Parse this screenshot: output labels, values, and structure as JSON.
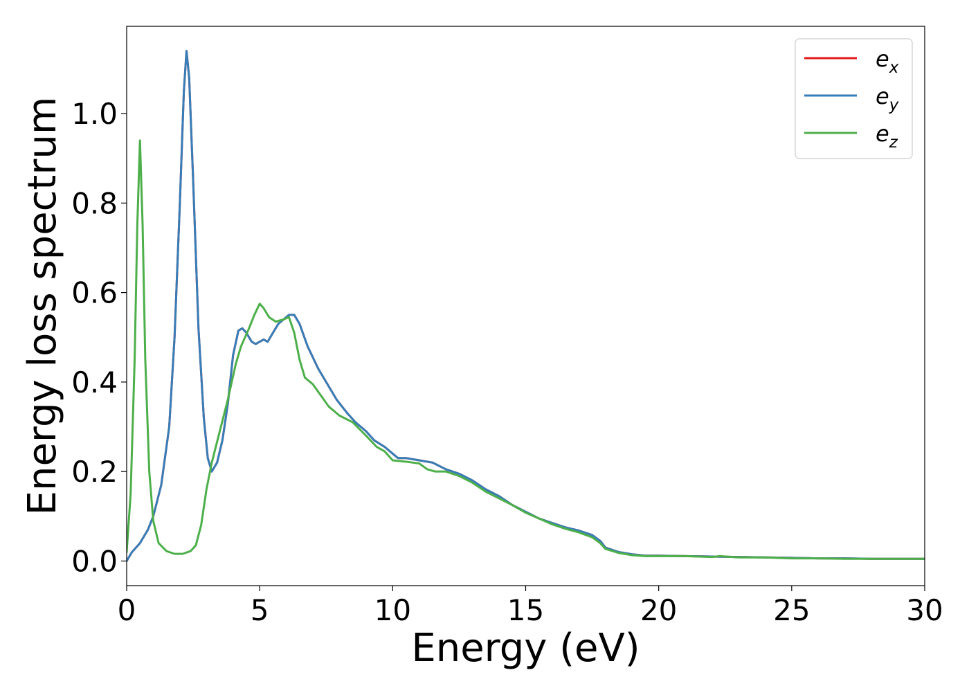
{
  "chart_data": {
    "type": "line",
    "title": "",
    "xlabel": "Energy (eV)",
    "ylabel": "Energy loss spectrum",
    "xlim": [
      0,
      30
    ],
    "ylim": [
      -0.055,
      1.195
    ],
    "xticks": [
      0,
      5,
      10,
      15,
      20,
      25,
      30
    ],
    "xtick_labels": [
      "0",
      "5",
      "10",
      "15",
      "20",
      "25",
      "30"
    ],
    "yticks": [
      0.0,
      0.2,
      0.4,
      0.6,
      0.8,
      1.0
    ],
    "ytick_labels": [
      "0.0",
      "0.2",
      "0.4",
      "0.6",
      "0.8",
      "1.0"
    ],
    "grid": false,
    "legend_position": "top-right",
    "series": [
      {
        "name": "e_x",
        "label_base": "e",
        "label_sub": "x",
        "color": "#e41a1c",
        "points": [
          [
            0,
            0.0
          ],
          [
            0.2,
            0.02
          ],
          [
            0.5,
            0.04
          ],
          [
            0.8,
            0.07
          ],
          [
            1.0,
            0.1
          ],
          [
            1.3,
            0.17
          ],
          [
            1.6,
            0.3
          ],
          [
            1.8,
            0.5
          ],
          [
            2.0,
            0.8
          ],
          [
            2.15,
            1.05
          ],
          [
            2.25,
            1.14
          ],
          [
            2.35,
            1.08
          ],
          [
            2.5,
            0.85
          ],
          [
            2.7,
            0.52
          ],
          [
            2.9,
            0.32
          ],
          [
            3.05,
            0.23
          ],
          [
            3.2,
            0.2
          ],
          [
            3.4,
            0.22
          ],
          [
            3.6,
            0.27
          ],
          [
            3.8,
            0.35
          ],
          [
            4.0,
            0.46
          ],
          [
            4.2,
            0.515
          ],
          [
            4.35,
            0.52
          ],
          [
            4.5,
            0.51
          ],
          [
            4.7,
            0.49
          ],
          [
            4.85,
            0.485
          ],
          [
            5.0,
            0.49
          ],
          [
            5.15,
            0.495
          ],
          [
            5.3,
            0.49
          ],
          [
            5.5,
            0.51
          ],
          [
            5.7,
            0.53
          ],
          [
            5.9,
            0.54
          ],
          [
            6.1,
            0.55
          ],
          [
            6.3,
            0.55
          ],
          [
            6.5,
            0.53
          ],
          [
            6.8,
            0.48
          ],
          [
            7.2,
            0.43
          ],
          [
            7.6,
            0.39
          ],
          [
            7.9,
            0.36
          ],
          [
            8.3,
            0.33
          ],
          [
            8.6,
            0.31
          ],
          [
            9.0,
            0.29
          ],
          [
            9.3,
            0.27
          ],
          [
            9.7,
            0.255
          ],
          [
            10.0,
            0.24
          ],
          [
            10.2,
            0.23
          ],
          [
            10.5,
            0.23
          ],
          [
            11.0,
            0.225
          ],
          [
            11.5,
            0.22
          ],
          [
            12.0,
            0.205
          ],
          [
            12.5,
            0.195
          ],
          [
            13.0,
            0.18
          ],
          [
            13.5,
            0.16
          ],
          [
            14.0,
            0.145
          ],
          [
            14.5,
            0.125
          ],
          [
            15.0,
            0.11
          ],
          [
            15.5,
            0.095
          ],
          [
            16.0,
            0.085
          ],
          [
            16.5,
            0.075
          ],
          [
            17.0,
            0.068
          ],
          [
            17.5,
            0.058
          ],
          [
            17.8,
            0.045
          ],
          [
            18.0,
            0.03
          ],
          [
            18.5,
            0.02
          ],
          [
            19.0,
            0.015
          ],
          [
            19.5,
            0.012
          ],
          [
            20.0,
            0.012
          ],
          [
            21.0,
            0.011
          ],
          [
            22.0,
            0.01
          ],
          [
            23.0,
            0.009
          ],
          [
            24.0,
            0.008
          ],
          [
            25.0,
            0.007
          ],
          [
            26.0,
            0.006
          ],
          [
            27.0,
            0.006
          ],
          [
            28.0,
            0.005
          ],
          [
            29.0,
            0.005
          ],
          [
            30.0,
            0.005
          ]
        ]
      },
      {
        "name": "e_y",
        "label_base": "e",
        "label_sub": "y",
        "color": "#377eb8",
        "points": [
          [
            0,
            0.0
          ],
          [
            0.2,
            0.02
          ],
          [
            0.5,
            0.04
          ],
          [
            0.8,
            0.07
          ],
          [
            1.0,
            0.1
          ],
          [
            1.3,
            0.17
          ],
          [
            1.6,
            0.3
          ],
          [
            1.8,
            0.5
          ],
          [
            2.0,
            0.8
          ],
          [
            2.15,
            1.05
          ],
          [
            2.25,
            1.14
          ],
          [
            2.35,
            1.08
          ],
          [
            2.5,
            0.85
          ],
          [
            2.7,
            0.52
          ],
          [
            2.9,
            0.32
          ],
          [
            3.05,
            0.23
          ],
          [
            3.2,
            0.2
          ],
          [
            3.4,
            0.22
          ],
          [
            3.6,
            0.27
          ],
          [
            3.8,
            0.35
          ],
          [
            4.0,
            0.46
          ],
          [
            4.2,
            0.515
          ],
          [
            4.35,
            0.52
          ],
          [
            4.5,
            0.51
          ],
          [
            4.7,
            0.49
          ],
          [
            4.85,
            0.485
          ],
          [
            5.0,
            0.49
          ],
          [
            5.15,
            0.495
          ],
          [
            5.3,
            0.49
          ],
          [
            5.5,
            0.51
          ],
          [
            5.7,
            0.53
          ],
          [
            5.9,
            0.54
          ],
          [
            6.1,
            0.55
          ],
          [
            6.3,
            0.55
          ],
          [
            6.5,
            0.53
          ],
          [
            6.8,
            0.48
          ],
          [
            7.2,
            0.43
          ],
          [
            7.6,
            0.39
          ],
          [
            7.9,
            0.36
          ],
          [
            8.3,
            0.33
          ],
          [
            8.6,
            0.31
          ],
          [
            9.0,
            0.29
          ],
          [
            9.3,
            0.27
          ],
          [
            9.7,
            0.255
          ],
          [
            10.0,
            0.24
          ],
          [
            10.2,
            0.23
          ],
          [
            10.5,
            0.23
          ],
          [
            11.0,
            0.225
          ],
          [
            11.5,
            0.22
          ],
          [
            12.0,
            0.205
          ],
          [
            12.5,
            0.195
          ],
          [
            13.0,
            0.18
          ],
          [
            13.5,
            0.16
          ],
          [
            14.0,
            0.145
          ],
          [
            14.5,
            0.125
          ],
          [
            15.0,
            0.11
          ],
          [
            15.5,
            0.095
          ],
          [
            16.0,
            0.085
          ],
          [
            16.5,
            0.075
          ],
          [
            17.0,
            0.068
          ],
          [
            17.5,
            0.058
          ],
          [
            17.8,
            0.045
          ],
          [
            18.0,
            0.03
          ],
          [
            18.5,
            0.02
          ],
          [
            19.0,
            0.015
          ],
          [
            19.5,
            0.012
          ],
          [
            20.0,
            0.012
          ],
          [
            21.0,
            0.011
          ],
          [
            22.0,
            0.01
          ],
          [
            23.0,
            0.009
          ],
          [
            24.0,
            0.008
          ],
          [
            25.0,
            0.007
          ],
          [
            26.0,
            0.006
          ],
          [
            27.0,
            0.006
          ],
          [
            28.0,
            0.005
          ],
          [
            29.0,
            0.005
          ],
          [
            30.0,
            0.005
          ]
        ]
      },
      {
        "name": "e_z",
        "label_base": "e",
        "label_sub": "z",
        "color": "#4daf4a",
        "points": [
          [
            0,
            0.02
          ],
          [
            0.15,
            0.15
          ],
          [
            0.3,
            0.45
          ],
          [
            0.4,
            0.75
          ],
          [
            0.5,
            0.94
          ],
          [
            0.6,
            0.75
          ],
          [
            0.7,
            0.45
          ],
          [
            0.85,
            0.2
          ],
          [
            1.0,
            0.09
          ],
          [
            1.2,
            0.04
          ],
          [
            1.5,
            0.022
          ],
          [
            1.8,
            0.016
          ],
          [
            2.1,
            0.016
          ],
          [
            2.4,
            0.022
          ],
          [
            2.6,
            0.035
          ],
          [
            2.8,
            0.08
          ],
          [
            3.0,
            0.16
          ],
          [
            3.2,
            0.22
          ],
          [
            3.5,
            0.29
          ],
          [
            3.8,
            0.36
          ],
          [
            4.1,
            0.44
          ],
          [
            4.3,
            0.48
          ],
          [
            4.6,
            0.52
          ],
          [
            4.8,
            0.55
          ],
          [
            5.0,
            0.575
          ],
          [
            5.15,
            0.565
          ],
          [
            5.35,
            0.545
          ],
          [
            5.6,
            0.535
          ],
          [
            5.9,
            0.54
          ],
          [
            6.1,
            0.545
          ],
          [
            6.3,
            0.51
          ],
          [
            6.5,
            0.45
          ],
          [
            6.7,
            0.41
          ],
          [
            7.0,
            0.395
          ],
          [
            7.3,
            0.37
          ],
          [
            7.6,
            0.345
          ],
          [
            8.0,
            0.325
          ],
          [
            8.5,
            0.31
          ],
          [
            9.0,
            0.28
          ],
          [
            9.4,
            0.255
          ],
          [
            9.7,
            0.245
          ],
          [
            10.0,
            0.225
          ],
          [
            10.5,
            0.222
          ],
          [
            11.0,
            0.218
          ],
          [
            11.3,
            0.205
          ],
          [
            11.6,
            0.2
          ],
          [
            12.0,
            0.2
          ],
          [
            12.5,
            0.19
          ],
          [
            13.0,
            0.175
          ],
          [
            13.5,
            0.155
          ],
          [
            14.0,
            0.14
          ],
          [
            14.5,
            0.125
          ],
          [
            15.0,
            0.108
          ],
          [
            15.5,
            0.095
          ],
          [
            16.0,
            0.082
          ],
          [
            16.5,
            0.072
          ],
          [
            17.0,
            0.064
          ],
          [
            17.5,
            0.053
          ],
          [
            17.8,
            0.04
          ],
          [
            18.0,
            0.027
          ],
          [
            18.5,
            0.018
          ],
          [
            19.0,
            0.013
          ],
          [
            19.5,
            0.011
          ],
          [
            20.0,
            0.011
          ],
          [
            21.0,
            0.011
          ],
          [
            22.0,
            0.009
          ],
          [
            22.3,
            0.011
          ],
          [
            23.0,
            0.008
          ],
          [
            24.0,
            0.008
          ],
          [
            25.0,
            0.006
          ],
          [
            26.0,
            0.006
          ],
          [
            27.0,
            0.005
          ],
          [
            28.0,
            0.005
          ],
          [
            29.0,
            0.005
          ],
          [
            30.0,
            0.005
          ]
        ]
      }
    ]
  }
}
